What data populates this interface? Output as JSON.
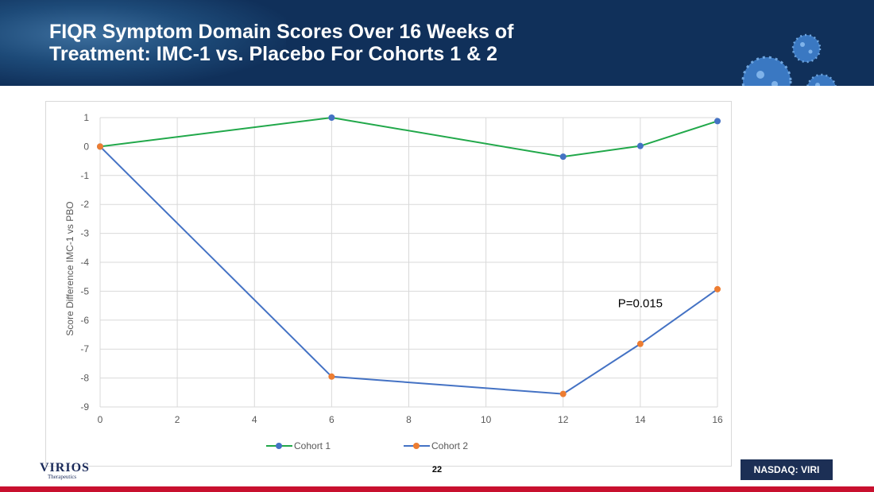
{
  "slide": {
    "title_line1": "FIQR Symptom Domain Scores Over 16 Weeks of",
    "title_line2": "Treatment: IMC-1 vs. Placebo For Cohorts 1 & 2",
    "page_number": "22",
    "exchange_badge": "NASDAQ: VIRI",
    "logo_text": "VIRIOS",
    "logo_subtext": "Therapeutics"
  },
  "colors": {
    "header_bg": "#10305a",
    "cohort1_line": "#21a84a",
    "cohort2_line": "#4472c4",
    "marker_blue": "#4472c4",
    "marker_orange": "#ed7d31",
    "grid": "#d9d9d9",
    "accent_red": "#c8102e"
  },
  "chart_data": {
    "type": "line",
    "title": "",
    "xlabel": "",
    "ylabel": "Score Difference IMC-1 vs PBO",
    "xlim": [
      0,
      16
    ],
    "ylim": [
      -9,
      1
    ],
    "x_ticks": [
      0,
      2,
      4,
      6,
      8,
      10,
      12,
      14,
      16
    ],
    "y_ticks": [
      1,
      0,
      -1,
      -2,
      -3,
      -4,
      -5,
      -6,
      -7,
      -8,
      -9
    ],
    "grid": true,
    "legend_position": "bottom",
    "series": [
      {
        "name": "Cohort 1",
        "line_color": "#21a84a",
        "marker_color": "#4472c4",
        "x": [
          0,
          6,
          12,
          14,
          16
        ],
        "y": [
          0,
          1.0,
          -0.35,
          0.02,
          0.88
        ]
      },
      {
        "name": "Cohort 2",
        "line_color": "#4472c4",
        "marker_color": "#ed7d31",
        "x": [
          0,
          6,
          12,
          14,
          16
        ],
        "y": [
          0,
          -7.95,
          -8.55,
          -6.82,
          -4.93
        ]
      }
    ],
    "annotations": [
      {
        "text": "P=0.015",
        "x": 14.0,
        "y": -5.55
      }
    ]
  }
}
